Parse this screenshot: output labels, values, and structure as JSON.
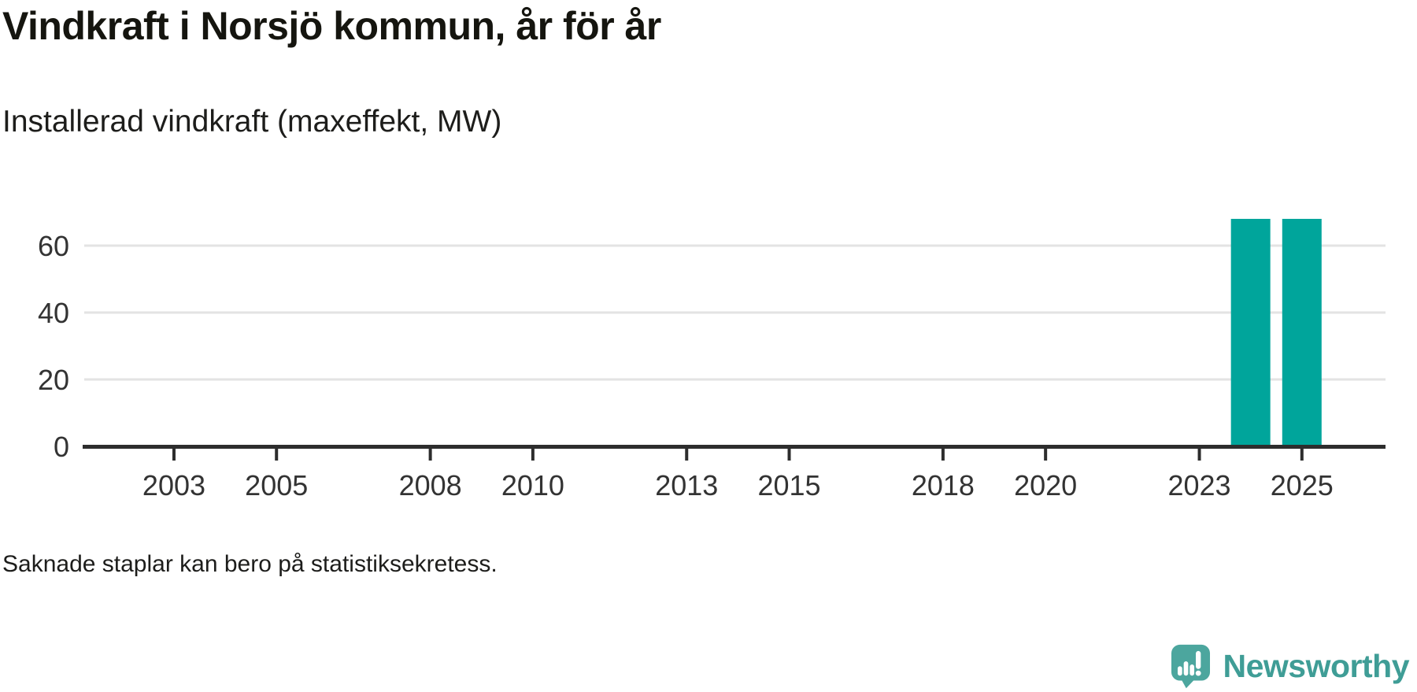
{
  "header": {
    "title": "Vindkraft i Norsjö kommun, år för år",
    "subtitle": "Installerad vindkraft (maxeffekt, MW)"
  },
  "chart_data": {
    "type": "bar",
    "title": "Vindkraft i Norsjö kommun, år för år",
    "subtitle": "Installerad vindkraft (maxeffekt, MW)",
    "xlabel": "",
    "ylabel": "Installerad vindkraft (maxeffekt, MW)",
    "x_domain": [
      2001.25,
      2026.6
    ],
    "ylim": [
      0,
      72
    ],
    "x_ticks": [
      2003,
      2005,
      2008,
      2010,
      2013,
      2015,
      2018,
      2020,
      2023,
      2025
    ],
    "y_ticks": [
      0,
      20,
      40,
      60
    ],
    "grid": "horizontal",
    "legend": "none",
    "bar_width_years": 0.77,
    "series": [
      {
        "name": "Installerad vindkraft (maxeffekt, MW)",
        "points": [
          {
            "x": 2024,
            "y": 68
          },
          {
            "x": 2025,
            "y": 68
          }
        ]
      }
    ],
    "colors": {
      "bar": "#00a59b",
      "axis": "#2d2d2d",
      "grid": "#e3e3e3",
      "tick_label": "#333333"
    }
  },
  "footer": {
    "note": "Saknade staplar kan bero på statistiksekretess."
  },
  "branding": {
    "name": "Newsworthy",
    "logo_color": "#4ca69e",
    "logo_shade": "#3f958d",
    "text_color": "#3f9d96",
    "glyph_color": "#ffffff"
  }
}
